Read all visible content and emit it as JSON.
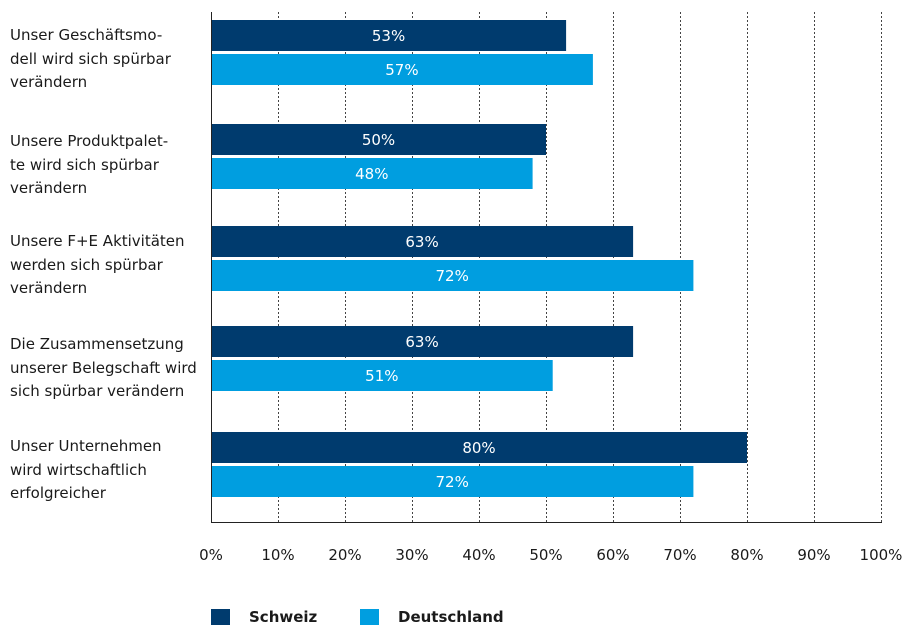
{
  "chart_data": {
    "type": "bar",
    "orientation": "horizontal",
    "categories": [
      "Unser Geschäftsmo-\ndell wird sich spürbar\nverändern",
      "Unsere Produktpalet-\nte wird sich spürbar\nverändern",
      "Unsere F+E Aktivitäten\nwerden sich spürbar\nverändern",
      "Die Zusammensetzung\nunserer Belegschaft wird\nsich spürbar verändern",
      "Unser Unternehmen\nwird wirtschaftlich\nerfolgreicher"
    ],
    "series": [
      {
        "name": "Schweiz",
        "color": "#003b6e",
        "values": [
          53,
          50,
          63,
          63,
          80
        ],
        "labels": [
          "53%",
          "50%",
          "63%",
          "63%",
          "80%"
        ]
      },
      {
        "name": "Deutschland",
        "color": "#009ee0",
        "values": [
          57,
          48,
          72,
          51,
          72
        ],
        "labels": [
          "57%",
          "48%",
          "72%",
          "51%",
          "72%"
        ]
      }
    ],
    "xlim": [
      0,
      100
    ],
    "xticks": [
      0,
      10,
      20,
      30,
      40,
      50,
      60,
      70,
      80,
      90,
      100
    ],
    "xtick_labels": [
      "0%",
      "10%",
      "20%",
      "30%",
      "40%",
      "50%",
      "60%",
      "70%",
      "80%",
      "90%",
      "100%"
    ],
    "grid": "vertical dotted",
    "legend_position": "bottom"
  }
}
